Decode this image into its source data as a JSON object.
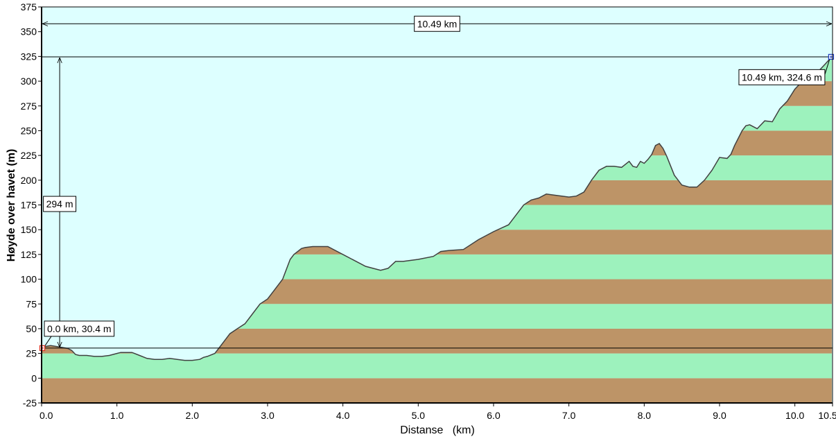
{
  "chart_data": {
    "type": "area",
    "xlabel": "Distanse   (km)",
    "ylabel": "Høyde over havet (m)",
    "xlim": [
      0,
      10.5
    ],
    "ylim": [
      -25,
      375
    ],
    "x_ticks": [
      0.0,
      1.0,
      2.0,
      3.0,
      4.0,
      5.0,
      6.0,
      7.0,
      8.0,
      9.0,
      10.0,
      10.5
    ],
    "x_tick_labels": [
      "0.0",
      "1.0",
      "2.0",
      "3.0",
      "4.0",
      "5.0",
      "6.0",
      "7.0",
      "8.0",
      "9.0",
      "10.0",
      "10.5"
    ],
    "y_ticks": [
      -25,
      0,
      25,
      50,
      75,
      100,
      125,
      150,
      175,
      200,
      225,
      250,
      275,
      300,
      325,
      350,
      375
    ],
    "y_tick_labels": [
      "-25",
      "0",
      "25",
      "50",
      "75",
      "100",
      "125",
      "150",
      "175",
      "200",
      "225",
      "250",
      "275",
      "300",
      "325",
      "350",
      "375"
    ],
    "band_height_m": 25,
    "grid": false,
    "colors": {
      "sky": "#ddffff",
      "band_brown": "#bd9467",
      "band_green": "#9df2bd",
      "profile_line": "#404040",
      "start_marker": "#e03020",
      "end_marker": "#2040c0"
    },
    "series": [
      {
        "x": [
          0.0,
          0.05,
          0.12,
          0.2,
          0.28,
          0.35,
          0.4,
          0.45,
          0.5,
          0.6,
          0.7,
          0.8,
          0.9,
          1.0,
          1.05,
          1.1,
          1.2,
          1.3,
          1.4,
          1.5,
          1.6,
          1.7,
          1.8,
          1.9,
          2.0,
          2.1,
          2.15,
          2.2,
          2.3,
          2.35,
          2.4,
          2.5,
          2.6,
          2.7,
          2.8,
          2.9,
          3.0,
          3.1,
          3.2,
          3.3,
          3.35,
          3.4,
          3.45,
          3.5,
          3.6,
          3.8,
          4.0,
          4.2,
          4.3,
          4.4,
          4.5,
          4.6,
          4.7,
          4.8,
          5.0,
          5.2,
          5.3,
          5.4,
          5.6,
          5.8,
          6.0,
          6.2,
          6.3,
          6.4,
          6.5,
          6.6,
          6.7,
          6.8,
          7.0,
          7.1,
          7.2,
          7.3,
          7.4,
          7.5,
          7.6,
          7.7,
          7.8,
          7.85,
          7.9,
          7.95,
          8.0,
          8.05,
          8.1,
          8.15,
          8.2,
          8.25,
          8.3,
          8.4,
          8.5,
          8.6,
          8.7,
          8.8,
          8.9,
          9.0,
          9.1,
          9.15,
          9.2,
          9.3,
          9.35,
          9.4,
          9.5,
          9.6,
          9.7,
          9.8,
          9.9,
          10.0,
          10.1,
          10.2,
          10.3,
          10.4,
          10.49
        ],
        "y": [
          30.4,
          32,
          33,
          32,
          31,
          30,
          28,
          24,
          23,
          23,
          22,
          22,
          23,
          25,
          26,
          26,
          26,
          23,
          20,
          19,
          19,
          20,
          19,
          18,
          18,
          19,
          21,
          22,
          25,
          30,
          35,
          45,
          50,
          55,
          65,
          75,
          80,
          90,
          100,
          120,
          125,
          128,
          131,
          132,
          133,
          133,
          125,
          117,
          113,
          111,
          109,
          111,
          118,
          118,
          120,
          123,
          128,
          129,
          130,
          140,
          148,
          155,
          165,
          175,
          180,
          182,
          186,
          185,
          183,
          184,
          188,
          200,
          210,
          214,
          214,
          213,
          219,
          214,
          213,
          219,
          217,
          221,
          226,
          235,
          237,
          232,
          224,
          205,
          195,
          193,
          193,
          200,
          210,
          223,
          222,
          226,
          235,
          250,
          255,
          256,
          252,
          260,
          259,
          272,
          280,
          292,
          300,
          305,
          309,
          317,
          324.6
        ]
      }
    ],
    "annotations": {
      "distance_label": "10.49 km",
      "height_diff_label": "294 m",
      "start_label": "0.0 km, 30.4 m",
      "end_label": "10.49 km, 324.6 m"
    }
  }
}
